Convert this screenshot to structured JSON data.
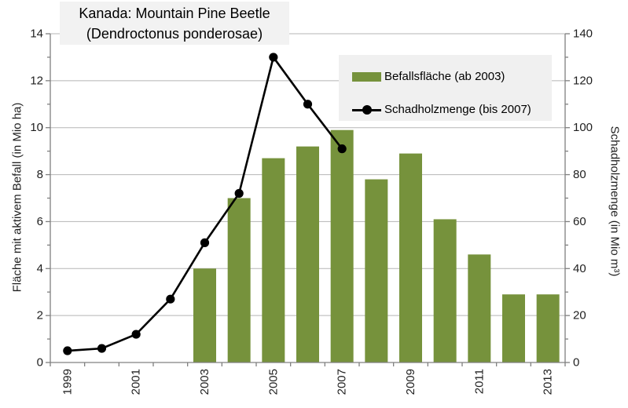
{
  "title": {
    "line1": "Kanada: Mountain Pine Beetle",
    "line2": "(Dendroctonus ponderosae)"
  },
  "colors": {
    "bar": "#76923C",
    "line": "#000000",
    "marker": "#000000",
    "grid": "#b5b5b5",
    "axis": "#808080",
    "tick_text": "#1f1f1f",
    "title_bg": "#f2f2f2",
    "legend_bg": "#f0f0f0",
    "background": "#ffffff"
  },
  "chart_data": {
    "type": "bar+line",
    "title": "Kanada: Mountain Pine Beetle (Dendroctonus ponderosae)",
    "categories": [
      1999,
      2000,
      2001,
      2002,
      2003,
      2004,
      2005,
      2006,
      2007,
      2008,
      2009,
      2010,
      2011,
      2012,
      2013
    ],
    "series": [
      {
        "name": "Befallsfläche (ab 2003)",
        "type": "bar",
        "axis": "left",
        "values": [
          null,
          null,
          null,
          null,
          4.0,
          7.0,
          8.7,
          9.2,
          9.9,
          7.8,
          8.9,
          6.1,
          4.6,
          2.9,
          2.9
        ]
      },
      {
        "name": "Schadholzmenge (bis 2007)",
        "type": "line",
        "axis": "right",
        "values": [
          5,
          6,
          12,
          27,
          51,
          72,
          130,
          110,
          91,
          null,
          null,
          null,
          null,
          null,
          null
        ]
      }
    ],
    "left_axis": {
      "label": "Fläche mit aktivem Befall (in Mio ha)",
      "ylim": [
        0,
        14
      ],
      "major_ticks": [
        0,
        2,
        4,
        6,
        8,
        10,
        12,
        14
      ],
      "minor_step": 1
    },
    "right_axis": {
      "label": "Schadholzmenge (in Mio m³)",
      "ylim": [
        0,
        140
      ],
      "major_ticks": [
        0,
        20,
        40,
        60,
        80,
        100,
        120,
        140
      ],
      "minor_step": 10
    },
    "x_axis": {
      "tick_labels": [
        "1999",
        "2001",
        "2003",
        "2005",
        "2007",
        "2009",
        "2011",
        "2013"
      ],
      "label_rotation": -90
    },
    "grid": true,
    "legend_position": "top-right"
  }
}
